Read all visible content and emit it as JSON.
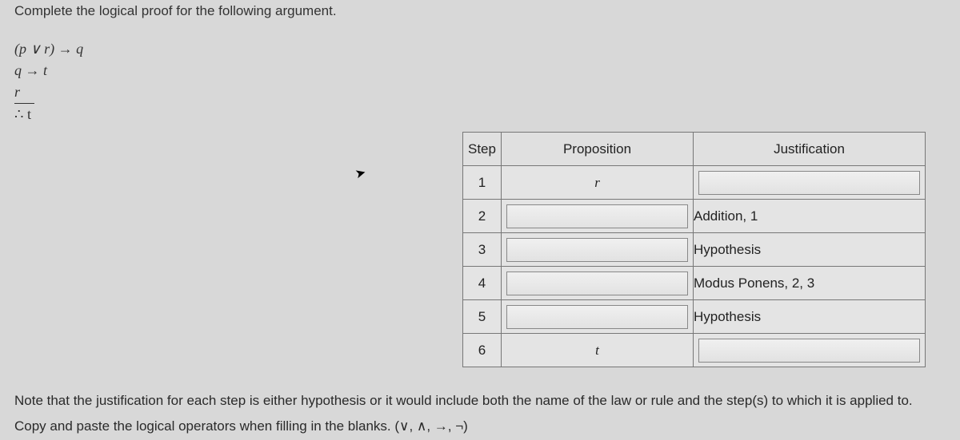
{
  "instruction": "Complete the logical proof for the following argument.",
  "argument": {
    "line1": "(p ∨ r) → q",
    "line2": "q → t",
    "line3": "r",
    "conclusion": "∴ t"
  },
  "table": {
    "headers": {
      "step": "Step",
      "proposition": "Proposition",
      "justification": "Justification"
    },
    "rows": [
      {
        "step": "1",
        "proposition": "r",
        "justification": "",
        "prop_blank": false,
        "just_blank": true
      },
      {
        "step": "2",
        "proposition": "",
        "justification": "Addition, 1",
        "prop_blank": true,
        "just_blank": false
      },
      {
        "step": "3",
        "proposition": "",
        "justification": "Hypothesis",
        "prop_blank": true,
        "just_blank": false
      },
      {
        "step": "4",
        "proposition": "",
        "justification": "Modus Ponens, 2, 3",
        "prop_blank": true,
        "just_blank": false
      },
      {
        "step": "5",
        "proposition": "",
        "justification": "Hypothesis",
        "prop_blank": true,
        "just_blank": false
      },
      {
        "step": "6",
        "proposition": "t",
        "justification": "",
        "prop_blank": false,
        "just_blank": true
      }
    ]
  },
  "note_line1": "Note that the justification for each step is either hypothesis or it would include both the name of the law or rule and the step(s) to which it is applied to.",
  "note_line2": "Copy and paste the logical operators when filling in the blanks. (∨, ∧, →, ¬)",
  "colors": {
    "page_bg": "#d8d8d8",
    "text": "#2a2a2a",
    "border": "#777777",
    "blank_border": "#888888"
  }
}
